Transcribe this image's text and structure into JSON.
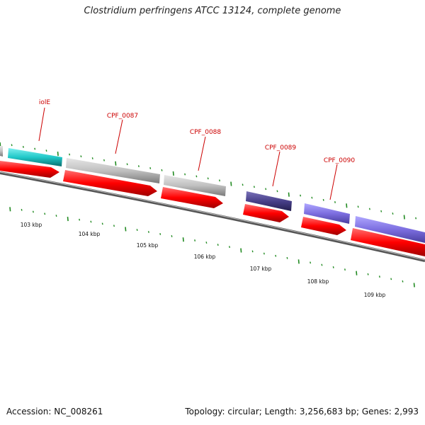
{
  "header": {
    "title": "Clostridium perfringens ATCC 13124, complete genome"
  },
  "footer": {
    "accession": "Accession: NC_008261",
    "summary": "Topology: circular; Length: 3,256,683 bp; Genes: 2,993"
  },
  "colors": {
    "gene_red": "#ff0000",
    "gene_cyan": "#20c8c8",
    "gene_gray": "#c0c0c0",
    "gene_navy": "#48408a",
    "gene_purple": "#7c6ee0",
    "tick_green": "#228b22",
    "label_red": "#cc0000",
    "backbone": "#777777"
  },
  "genes": [
    {
      "label": "iolE",
      "color": "cyan"
    },
    {
      "label": "CPF_0087",
      "color": "gray"
    },
    {
      "label": "CPF_0088",
      "color": "gray"
    },
    {
      "label": "CPF_0089",
      "color": "navy"
    },
    {
      "label": "CPF_0090",
      "color": "purple"
    }
  ],
  "scale": {
    "unit": "kbp",
    "labels": [
      "103 kbp",
      "104 kbp",
      "105 kbp",
      "106 kbp",
      "107 kbp",
      "108 kbp",
      "109 kbp"
    ]
  }
}
